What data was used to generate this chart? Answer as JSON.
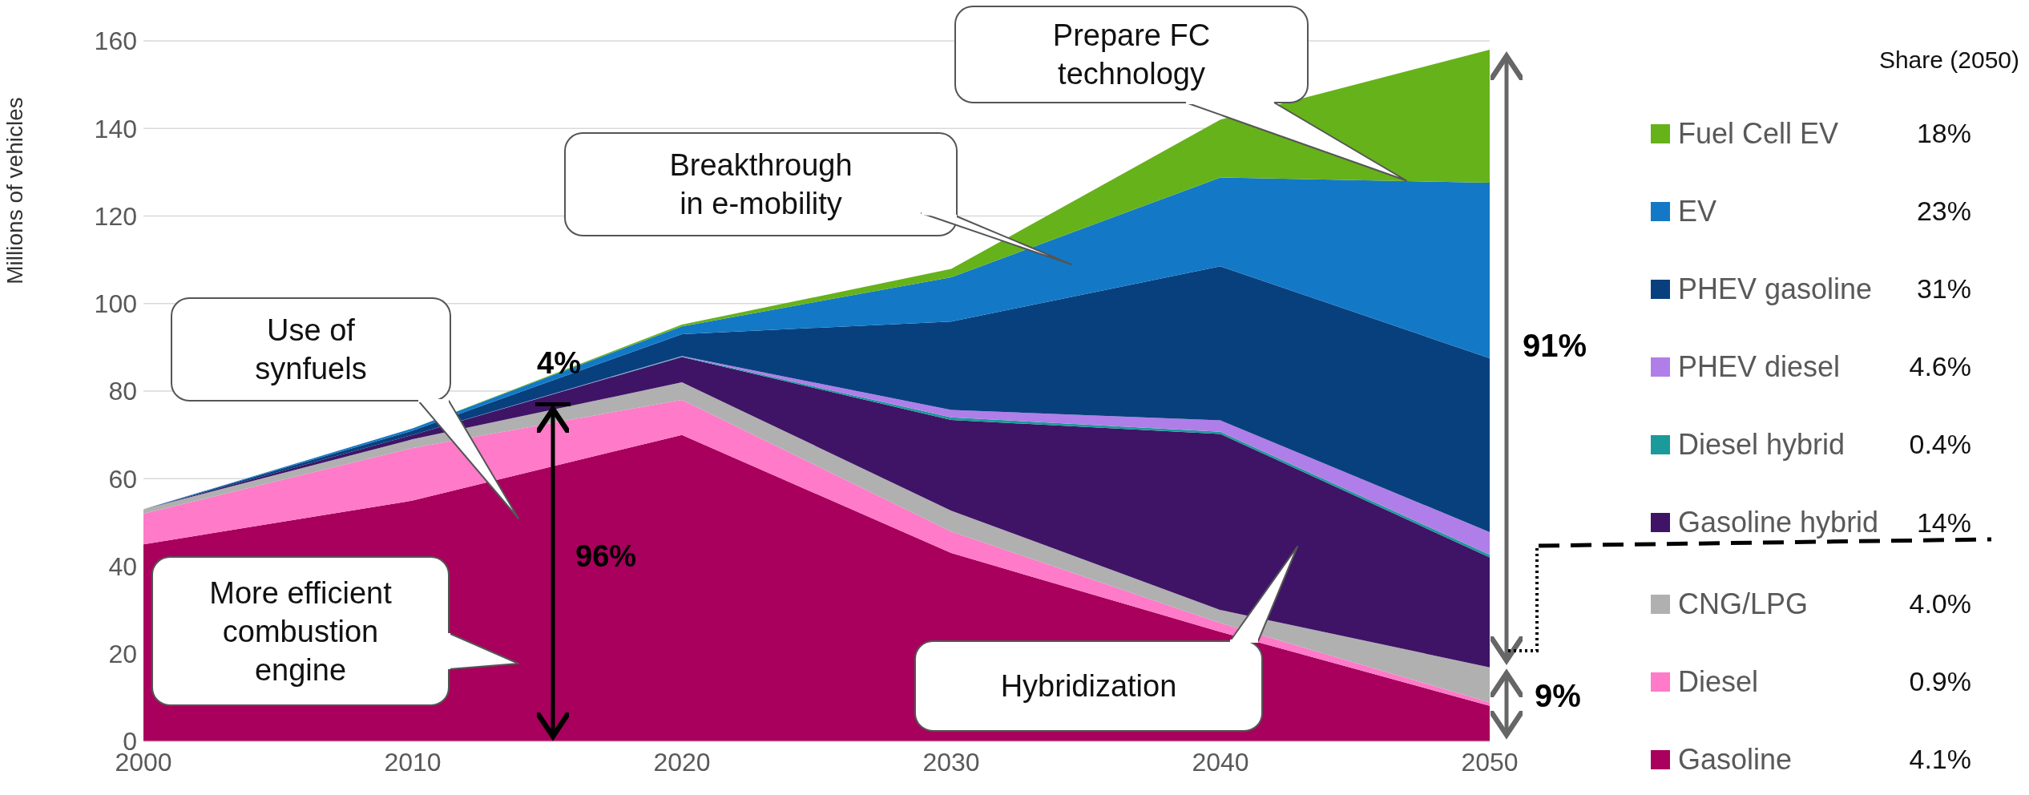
{
  "chart_data": {
    "type": "area",
    "stacked": true,
    "ylabel": "Millions of vehicles",
    "legend_title": "Share (2050)",
    "x": [
      2000,
      2010,
      2020,
      2030,
      2040,
      2050
    ],
    "xlim": [
      2000,
      2050
    ],
    "xticks": [
      2000,
      2010,
      2020,
      2030,
      2040,
      2050
    ],
    "ylim": [
      0,
      160
    ],
    "yticks": [
      0,
      20,
      40,
      60,
      80,
      100,
      120,
      140,
      160
    ],
    "grid": "y",
    "legend": "right",
    "series": [
      {
        "name": "Gasoline",
        "color": "#a8005c",
        "values": [
          45,
          55,
          70,
          43,
          25,
          8.1
        ]
      },
      {
        "name": "Diesel",
        "color": "#ff7ac8",
        "values": [
          7,
          12,
          8,
          4.9,
          2,
          0.8
        ]
      },
      {
        "name": "CNG/LPG",
        "color": "#b0b0b0",
        "values": [
          1,
          2,
          4,
          4.8,
          3,
          8
        ]
      },
      {
        "name": "Gasoline hybrid",
        "color": "#3f1466",
        "values": [
          0,
          1,
          5.8,
          20.7,
          40.2,
          25.1
        ]
      },
      {
        "name": "Diesel hybrid",
        "color": "#1a9a9a",
        "values": [
          0,
          0,
          0.1,
          0.6,
          0.5,
          0.6
        ]
      },
      {
        "name": "PHEV diesel",
        "color": "#b07ee8",
        "values": [
          0,
          0,
          0.1,
          1.7,
          2.6,
          5.2
        ]
      },
      {
        "name": "PHEV gasoline",
        "color": "#08407e",
        "values": [
          0,
          1,
          5,
          20.2,
          35.2,
          39.7
        ]
      },
      {
        "name": "EV",
        "color": "#1379c6",
        "values": [
          0,
          0.5,
          1.8,
          10.1,
          20.3,
          40.1
        ]
      },
      {
        "name": "Fuel Cell EV",
        "color": "#66b21a",
        "values": [
          0,
          0,
          0.4,
          1.9,
          13.2,
          30.4
        ]
      }
    ],
    "annotations": [
      {
        "text": "Prepare FC technology",
        "x": 2046.9,
        "y": 128.1
      },
      "Breakthrough in e-mobility",
      "Use of synfuels",
      "More efficient combustion engine",
      "Hybridization",
      "4%",
      "96%",
      "91%",
      "9%",
      "18%",
      "23%",
      "31%",
      "4.6%",
      "0.4%",
      "14%",
      "4.0%",
      "0.9%",
      "4.1%"
    ]
  }
}
